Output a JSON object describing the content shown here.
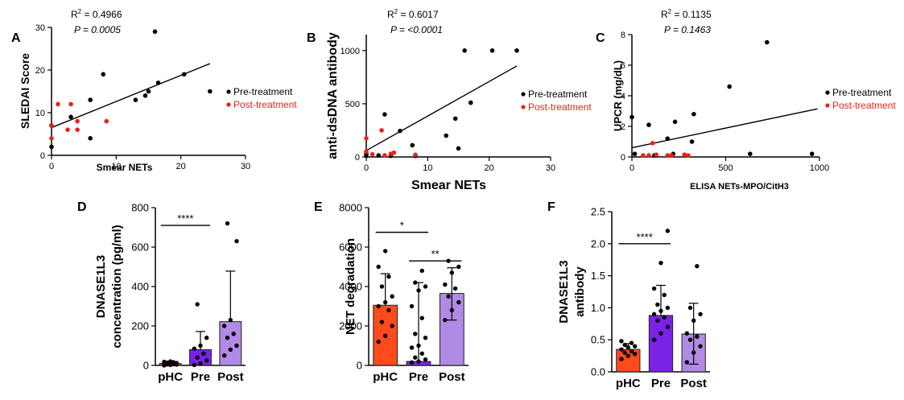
{
  "colors": {
    "black": "#000000",
    "red": "#e8221b",
    "pHC_bar": "#ff4a1c",
    "Pre_bar": "#7a22e6",
    "Post_bar": "#b189e6"
  },
  "chart_data": [
    {
      "panel": "A",
      "type": "scatter",
      "xlabel": "Smear NETs",
      "ylabel": "SLEDAI Score",
      "xlim": [
        0,
        30
      ],
      "ylim": [
        0,
        30
      ],
      "xticks": [
        0,
        10,
        20,
        30
      ],
      "yticks": [
        0,
        10,
        20,
        30
      ],
      "r2_text": "0.4966",
      "p_text": "0.0005",
      "fit": {
        "x": [
          0,
          24.5
        ],
        "y": [
          6.5,
          21.5
        ]
      },
      "legend": [
        "Pre-treatment",
        "Post-treatment"
      ],
      "series": [
        {
          "name": "Pre-treatment",
          "color": "#000000",
          "points": [
            [
              0,
              2
            ],
            [
              0,
              7
            ],
            [
              3,
              9
            ],
            [
              6,
              4
            ],
            [
              6,
              13
            ],
            [
              8,
              19
            ],
            [
              13,
              13
            ],
            [
              14.5,
              14
            ],
            [
              15,
              15
            ],
            [
              16,
              29
            ],
            [
              16.5,
              17
            ],
            [
              20.5,
              19
            ],
            [
              24.5,
              15
            ]
          ]
        },
        {
          "name": "Post-treatment",
          "color": "#e8221b",
          "points": [
            [
              0,
              4
            ],
            [
              0,
              7
            ],
            [
              1,
              12
            ],
            [
              2.5,
              6
            ],
            [
              3,
              12
            ],
            [
              4,
              6
            ],
            [
              4,
              8
            ],
            [
              8.5,
              8
            ]
          ]
        }
      ]
    },
    {
      "panel": "B",
      "type": "scatter",
      "xlabel": "Smear NETs",
      "ylabel": "anti-dsDNA antibody",
      "xlim": [
        0,
        30
      ],
      "ylim": [
        0,
        1150
      ],
      "xticks": [
        0,
        10,
        20,
        30
      ],
      "yticks": [
        0,
        500,
        1000
      ],
      "r2_text": "0.6017",
      "p_text": "<0.0001",
      "fit": {
        "x": [
          0,
          24.5
        ],
        "y": [
          60,
          855
        ]
      },
      "legend": [
        "Pre-treatment",
        "Post-treatment"
      ],
      "series": [
        {
          "name": "Pre-treatment",
          "color": "#000000",
          "points": [
            [
              0,
              10
            ],
            [
              0,
              30
            ],
            [
              2,
              15
            ],
            [
              3,
              400
            ],
            [
              4,
              10
            ],
            [
              5.5,
              245
            ],
            [
              7.5,
              110
            ],
            [
              8,
              10
            ],
            [
              13,
              200
            ],
            [
              14.5,
              360
            ],
            [
              15,
              80
            ],
            [
              16,
              1000
            ],
            [
              17,
              510
            ],
            [
              20.5,
              1000
            ],
            [
              24.5,
              1000
            ]
          ]
        },
        {
          "name": "Post-treatment",
          "color": "#e8221b",
          "points": [
            [
              0,
              50
            ],
            [
              0,
              175
            ],
            [
              1,
              25
            ],
            [
              2.5,
              250
            ],
            [
              3,
              15
            ],
            [
              4,
              30
            ],
            [
              4.5,
              40
            ],
            [
              8,
              20
            ]
          ]
        }
      ]
    },
    {
      "panel": "C",
      "type": "scatter",
      "xlabel": "ELISA NETs-MPO/CitH3",
      "ylabel": "UPCR (mg/dL)",
      "xlim": [
        0,
        1000
      ],
      "ylim": [
        0,
        8
      ],
      "xticks": [
        0,
        500,
        1000
      ],
      "yticks": [
        0,
        2,
        4,
        6,
        8
      ],
      "r2_text": "0.1135",
      "p_text": "0.1463",
      "fit": {
        "x": [
          0,
          990
        ],
        "y": [
          0.6,
          3.15
        ]
      },
      "legend": [
        "Pre-treatment",
        "Post-treatment"
      ],
      "series": [
        {
          "name": "Pre-treatment",
          "color": "#000000",
          "points": [
            [
              0,
              2.6
            ],
            [
              15,
              0.2
            ],
            [
              90,
              2.1
            ],
            [
              120,
              0.1
            ],
            [
              190,
              1.2
            ],
            [
              220,
              0.2
            ],
            [
              230,
              2.3
            ],
            [
              320,
              1.0
            ],
            [
              330,
              2.8
            ],
            [
              520,
              4.6
            ],
            [
              630,
              0.2
            ],
            [
              720,
              7.5
            ],
            [
              960,
              0.2
            ]
          ]
        },
        {
          "name": "Post-treatment",
          "color": "#e8221b",
          "points": [
            [
              60,
              0.1
            ],
            [
              90,
              0.1
            ],
            [
              110,
              0.9
            ],
            [
              130,
              0.15
            ],
            [
              190,
              0.1
            ],
            [
              210,
              0.1
            ],
            [
              280,
              0.15
            ],
            [
              300,
              0.1
            ]
          ]
        }
      ]
    },
    {
      "panel": "D",
      "type": "bar",
      "ylabel": [
        "DNASE1L3",
        "concentration (pg/ml)"
      ],
      "categories": [
        "pHC",
        "Pre",
        "Post"
      ],
      "ylim": [
        0,
        800
      ],
      "yticks": [
        0,
        200,
        400,
        600,
        800
      ],
      "values": [
        10,
        80,
        222
      ],
      "err_upper": [
        18,
        172,
        478
      ],
      "colors": [
        "#ff4a1c",
        "#7a22e6",
        "#b189e6"
      ],
      "points": [
        [
          0,
          2,
          4,
          5,
          6,
          8,
          10,
          12,
          14,
          16,
          18,
          20
        ],
        [
          2,
          10,
          25,
          40,
          60,
          85,
          100,
          140,
          310
        ],
        [
          50,
          80,
          100,
          140,
          160,
          200,
          230,
          630,
          720
        ]
      ],
      "significance": [
        {
          "from": 0,
          "to": 1,
          "label": "****",
          "y": 710
        }
      ]
    },
    {
      "panel": "E",
      "type": "bar",
      "ylabel": [
        "NET degradation"
      ],
      "categories": [
        "pHC",
        "Pre",
        "Post"
      ],
      "ylim": [
        0,
        8000
      ],
      "yticks": [
        0,
        2000,
        4000,
        6000,
        8000
      ],
      "values": [
        3050,
        200,
        3650
      ],
      "err_upper": [
        4650,
        4200,
        4950
      ],
      "err_lower": [
        null,
        null,
        2300
      ],
      "colors": [
        "#ff4a1c",
        "#7a22e6",
        "#b189e6"
      ],
      "points": [
        [
          1200,
          1500,
          2000,
          2200,
          2800,
          3000,
          3200,
          3500,
          4000,
          4500,
          5000,
          5800
        ],
        [
          150,
          200,
          300,
          400,
          600,
          900,
          1000,
          1400,
          1600,
          2400,
          3000,
          3800,
          4000,
          4200,
          4800
        ],
        [
          2300,
          2800,
          3200,
          3500,
          3900,
          4100,
          4700,
          5000,
          5300
        ]
      ],
      "significance": [
        {
          "from": 0,
          "to": 1,
          "label": "*",
          "y": 6750
        },
        {
          "from": 1,
          "to": 2,
          "label": "**",
          "y": 5300
        }
      ]
    },
    {
      "panel": "F",
      "type": "bar",
      "ylabel": [
        "DNASE1L3",
        "antibody"
      ],
      "categories": [
        "pHC",
        "Pre",
        "Post"
      ],
      "ylim": [
        0,
        2.5
      ],
      "yticks": [
        "0.0",
        "0.5",
        "1.0",
        "1.5",
        "2.0",
        "2.5"
      ],
      "values": [
        0.35,
        0.88,
        0.59
      ],
      "err_upper": [
        0.44,
        1.35,
        1.07
      ],
      "err_lower": [
        null,
        null,
        0.12
      ],
      "colors": [
        "#ff4a1c",
        "#7a22e6",
        "#b189e6"
      ],
      "points": [
        [
          0.2,
          0.25,
          0.28,
          0.3,
          0.32,
          0.35,
          0.38,
          0.4,
          0.42,
          0.45,
          0.48
        ],
        [
          0.5,
          0.6,
          0.7,
          0.8,
          0.85,
          0.9,
          0.95,
          1.0,
          1.05,
          1.2,
          1.3,
          1.7,
          2.2
        ],
        [
          0.15,
          0.3,
          0.4,
          0.5,
          0.55,
          0.6,
          0.8,
          0.9,
          1.0,
          1.65
        ]
      ],
      "significance": [
        {
          "from": 0,
          "to": 1,
          "label": "****",
          "y": 2.0
        }
      ]
    }
  ]
}
